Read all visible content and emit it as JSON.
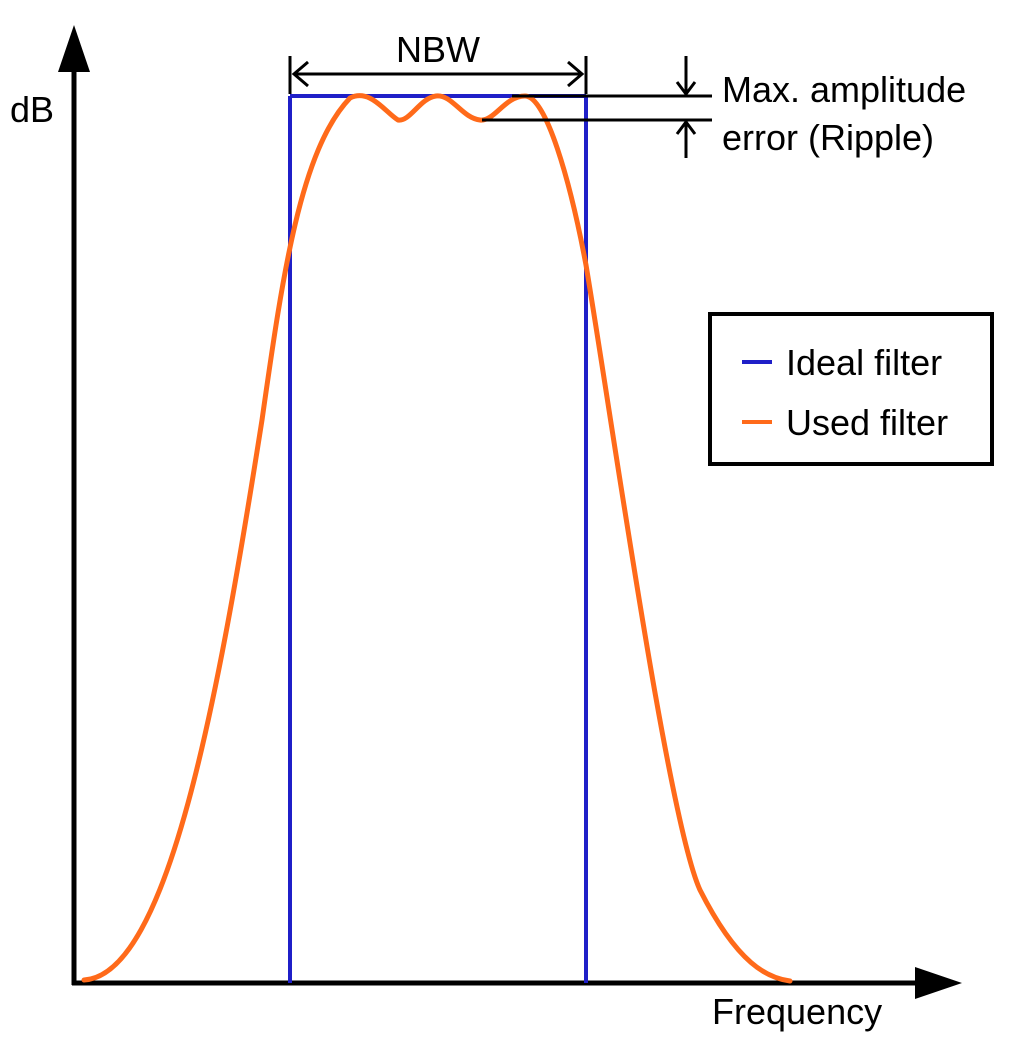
{
  "labels": {
    "y_axis": "dB",
    "x_axis": "Frequency",
    "bandwidth": "NBW",
    "ripple_line1": "Max. amplitude",
    "ripple_line2": "error (Ripple)"
  },
  "legend": {
    "items": [
      {
        "label": "Ideal filter",
        "color": "#1f1fc8"
      },
      {
        "label": "Used filter",
        "color": "#ff6a1a"
      }
    ]
  },
  "colors": {
    "axis": "#000000",
    "ideal_filter": "#1f1fc8",
    "used_filter": "#ff6a1a",
    "background": "#ffffff"
  }
}
